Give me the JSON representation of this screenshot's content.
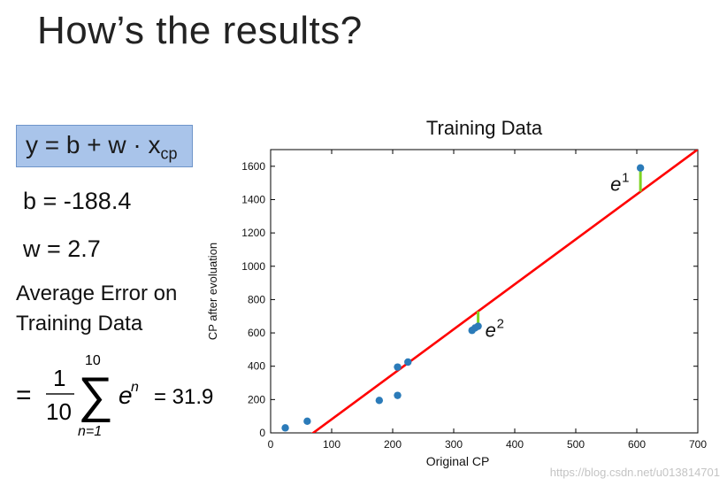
{
  "slide": {
    "title": "How’s the results?",
    "formula": {
      "lhs": "y = b + w · x",
      "sub": "cp"
    },
    "b_line": "b = -188.4",
    "w_line": "w = 2.7",
    "avg_line1": "Average Error on",
    "avg_line2": "Training Data",
    "equation": {
      "eq": "=",
      "frac_num": "1",
      "frac_den": "10",
      "sum_top": "10",
      "sum_bottom": "n=1",
      "term": "e",
      "term_sup": "n",
      "value": "= 31.9"
    },
    "watermark": "https://blog.csdn.net/u013814701"
  },
  "chart_data": {
    "type": "scatter",
    "title": "Training Data",
    "xlabel": "Original CP",
    "ylabel": "CP after evoluation",
    "xlim": [
      0,
      700
    ],
    "ylim": [
      0,
      1700
    ],
    "xticks": [
      0,
      100,
      200,
      300,
      400,
      500,
      600,
      700
    ],
    "yticks": [
      0,
      200,
      400,
      600,
      800,
      1000,
      1200,
      1400,
      1600
    ],
    "points": [
      {
        "x": 24,
        "y": 30
      },
      {
        "x": 60,
        "y": 70
      },
      {
        "x": 178,
        "y": 195
      },
      {
        "x": 208,
        "y": 225
      },
      {
        "x": 208,
        "y": 395
      },
      {
        "x": 225,
        "y": 425
      },
      {
        "x": 330,
        "y": 615
      },
      {
        "x": 335,
        "y": 630
      },
      {
        "x": 340,
        "y": 640
      },
      {
        "x": 606,
        "y": 1590
      }
    ],
    "fit_line": {
      "b": -188.4,
      "w": 2.7,
      "color": "#ff0000"
    },
    "point_color": "#2b7bb9",
    "error_color": "#7ed321",
    "annotations": [
      {
        "text": "e",
        "sup": "1",
        "x": 606
      },
      {
        "text": "e",
        "sup": "2",
        "x": 340
      }
    ],
    "grid": false
  }
}
